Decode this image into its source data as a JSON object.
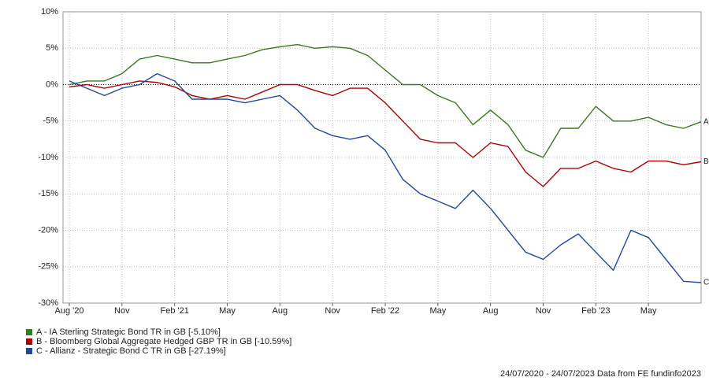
{
  "chart_data": {
    "type": "line",
    "categories": [
      "Aug '20",
      null,
      null,
      "Nov",
      null,
      null,
      "Feb '21",
      null,
      null,
      "May",
      null,
      null,
      "Aug",
      null,
      null,
      "Nov",
      null,
      null,
      "Feb '22",
      null,
      null,
      "May",
      null,
      null,
      "Aug",
      null,
      null,
      "Nov",
      null,
      null,
      "Feb '23",
      null,
      null,
      "May",
      null,
      null,
      null
    ],
    "series": [
      {
        "name": "A - IA Sterling Strategic Bond TR in GB [-5.10%]",
        "end_label": "A",
        "color": "#3a7a1e",
        "values": [
          0,
          0.5,
          0.5,
          1.5,
          3.5,
          4,
          3.5,
          3,
          3,
          3.5,
          4,
          4.8,
          5.2,
          5.5,
          5,
          5.2,
          5,
          4,
          2,
          0,
          0,
          -1.5,
          -2.5,
          -5.5,
          -3.5,
          -5.5,
          -9,
          -10,
          -6,
          -6,
          -3,
          -5,
          -5,
          -4.5,
          -5.5,
          -6,
          -5.1
        ]
      },
      {
        "name": "B - Bloomberg Global Aggregate Hedged GBP TR in GB [-10.59%]",
        "end_label": "B",
        "color": "#b00000",
        "values": [
          -0.3,
          0,
          -0.5,
          0,
          0.5,
          0.3,
          -0.3,
          -1.5,
          -2,
          -1.5,
          -2,
          -1,
          0,
          0,
          -0.8,
          -1.5,
          -0.5,
          -0.5,
          -2.5,
          -5,
          -7.5,
          -8,
          -8,
          -10,
          -8,
          -8.5,
          -12,
          -14,
          -11.5,
          -11.5,
          -10.5,
          -11.5,
          -12,
          -10.5,
          -10.5,
          -11,
          -10.59
        ]
      },
      {
        "name": "C - Allianz - Strategic Bond C TR in GB [-27.19%]",
        "end_label": "C",
        "color": "#2347a0",
        "values": [
          0.5,
          -0.5,
          -1.5,
          -0.5,
          0,
          1.5,
          0.5,
          -2,
          -2,
          -2,
          -2.5,
          -2,
          -1.5,
          -3.5,
          -6,
          -7,
          -7.5,
          -7,
          -9,
          -13,
          -15,
          -16,
          -17,
          -14.5,
          -17,
          -20,
          -23,
          -24,
          -22,
          -20.5,
          -23,
          -25.5,
          -20,
          -21,
          -24,
          -27,
          -27.19
        ]
      }
    ],
    "ylim": [
      -30,
      10
    ],
    "yticks": [
      {
        "value": -30,
        "label": "-30%"
      },
      {
        "value": -25,
        "label": "-25%"
      },
      {
        "value": -20,
        "label": "-20%"
      },
      {
        "value": -15,
        "label": "-15%"
      },
      {
        "value": -10,
        "label": "-10%"
      },
      {
        "value": -5,
        "label": "-5%"
      },
      {
        "value": 0,
        "label": "0%"
      },
      {
        "value": 5,
        "label": "5%"
      },
      {
        "value": 10,
        "label": "10%"
      }
    ],
    "grid": true,
    "footer": "24/07/2020 - 24/07/2023 Data from FE fundinfo2023"
  }
}
